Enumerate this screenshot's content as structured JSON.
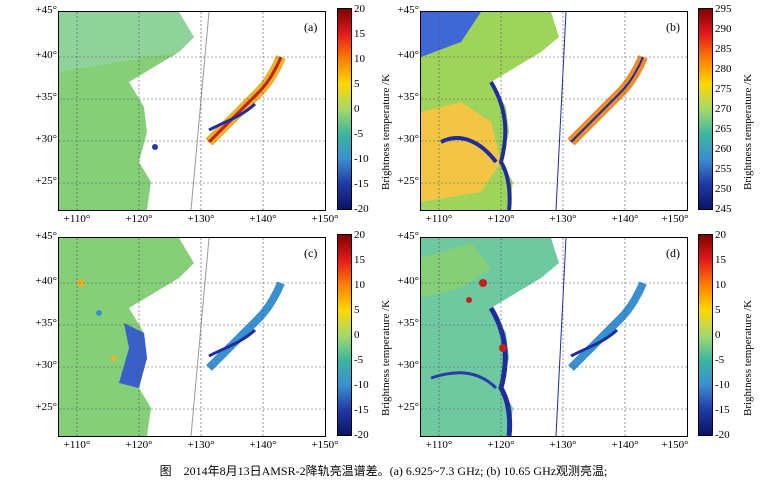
{
  "panels": [
    {
      "tag": "(a)",
      "lat_labels": [
        "+45°",
        "+40°",
        "+35°",
        "+30°",
        "+25°"
      ],
      "lon_labels": [
        "+110°",
        "+120°",
        "+130°",
        "+140°",
        "+150°"
      ],
      "colorbar": {
        "ticks": [
          "20",
          "15",
          "10",
          "5",
          "0",
          "-5",
          "-10",
          "-15",
          "-20"
        ],
        "label": "Brightness temperature /K"
      }
    },
    {
      "tag": "(b)",
      "lat_labels": [
        "+45°",
        "+40°",
        "+35°",
        "+30°",
        "+25°"
      ],
      "lon_labels": [
        "+110°",
        "+120°",
        "+130°",
        "+140°",
        "+150°"
      ],
      "colorbar": {
        "ticks": [
          "295",
          "290",
          "285",
          "280",
          "275",
          "270",
          "265",
          "260",
          "255",
          "250",
          "245"
        ],
        "label": "Brightness temperature /K"
      }
    },
    {
      "tag": "(c)",
      "lat_labels": [
        "+45°",
        "+40°",
        "+35°",
        "+30°",
        "+25°"
      ],
      "lon_labels": [
        "+110°",
        "+120°",
        "+130°",
        "+140°",
        "+150°"
      ],
      "colorbar": {
        "ticks": [
          "20",
          "15",
          "10",
          "5",
          "0",
          "-5",
          "-10",
          "-15",
          "-20"
        ],
        "label": "Brightness temperature /K"
      }
    },
    {
      "tag": "(d)",
      "lat_labels": [
        "+45°",
        "+40°",
        "+35°",
        "+30°",
        "+25°"
      ],
      "lon_labels": [
        "+110°",
        "+120°",
        "+130°",
        "+140°",
        "+150°"
      ],
      "colorbar": {
        "ticks": [
          "20",
          "15",
          "10",
          "5",
          "0",
          "-5",
          "-10",
          "-15",
          "-20"
        ],
        "label": "Brightness temperature /K"
      }
    }
  ],
  "caption": "图　2014年8月13日AMSR-2降轨亮温谱差。(a) 6.925~7.3 GHz; (b) 10.65 GHz观测亮温;",
  "colors": {
    "land_green": "#86cf79",
    "sea_white": "#ffffff",
    "low_blue": "#2a3aa8",
    "high_red": "#c81e1e"
  }
}
